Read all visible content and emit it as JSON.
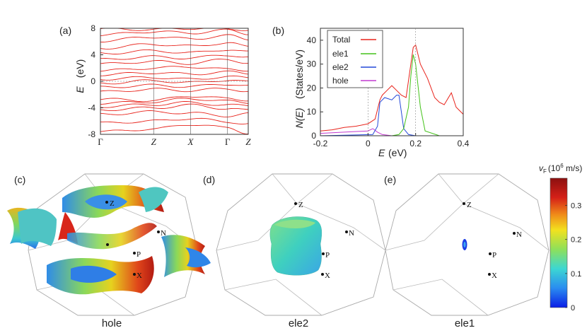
{
  "panel_labels": {
    "a": "(a)",
    "b": "(b)",
    "c": "(c)",
    "d": "(d)",
    "e": "(e)"
  },
  "chart_data": [
    {
      "type": "line",
      "id": "band-structure",
      "ylabel_symbol": "E",
      "ylabel_unit": "(eV)",
      "ylim": [
        -8,
        8
      ],
      "yticks": [
        "8",
        "4",
        "0",
        "-4",
        "-8"
      ],
      "ytick_values": [
        8,
        4,
        0,
        -4,
        -8
      ],
      "k_points": [
        "Γ",
        "Z",
        "X",
        "Γ",
        "Z"
      ],
      "k_positions": [
        0,
        0.36,
        0.61,
        0.86,
        1.0
      ],
      "color": "#e8231b",
      "bands": [
        [
          -7.6,
          -7.2,
          -6.5,
          -7.0,
          -7.8
        ],
        [
          -6.3,
          -6.0,
          -5.6,
          -6.1,
          -6.4
        ],
        [
          -5.0,
          -4.6,
          -4.8,
          -5.2,
          -4.9
        ],
        [
          -4.3,
          -4.0,
          -3.6,
          -4.1,
          -4.4
        ],
        [
          -3.8,
          -3.5,
          -3.2,
          -3.6,
          -3.7
        ],
        [
          -3.3,
          -3.1,
          -2.6,
          -3.0,
          -3.2
        ],
        [
          -2.7,
          -2.9,
          -2.2,
          -2.6,
          -2.8
        ],
        [
          -1.6,
          -1.2,
          -1.4,
          -1.1,
          -1.5
        ],
        [
          -0.9,
          -0.6,
          -0.8,
          -0.4,
          -0.7
        ],
        [
          -0.3,
          0.1,
          -0.2,
          0.2,
          -0.1
        ],
        [
          0.35,
          0.6,
          0.3,
          0.7,
          0.5
        ],
        [
          1.0,
          1.3,
          1.1,
          1.4,
          1.2
        ],
        [
          1.6,
          2.0,
          2.2,
          1.8,
          1.7
        ],
        [
          2.6,
          3.0,
          2.7,
          3.3,
          2.8
        ],
        [
          3.3,
          3.7,
          3.5,
          4.0,
          3.6
        ],
        [
          4.2,
          4.6,
          4.3,
          4.8,
          4.4
        ],
        [
          5.0,
          5.6,
          5.3,
          5.8,
          5.2
        ],
        [
          6.1,
          6.7,
          6.4,
          6.9,
          6.3
        ],
        [
          7.0,
          7.5,
          7.3,
          7.7,
          7.2
        ],
        [
          7.9,
          7.8,
          8.0,
          7.9,
          7.8
        ]
      ]
    },
    {
      "type": "line",
      "id": "density-of-states",
      "ylabel_symbol": "N(E)",
      "ylabel_unit": "(States/eV)",
      "xlabel_symbol": "E",
      "xlabel_unit": "(eV)",
      "xlim": [
        -0.2,
        0.4
      ],
      "ylim": [
        0,
        45
      ],
      "xticks": [
        "-0.2",
        "0",
        "0.2",
        "0.4"
      ],
      "xtick_values": [
        -0.2,
        0,
        0.2,
        0.4
      ],
      "yticks": [
        "0",
        "10",
        "20",
        "30",
        "40"
      ],
      "ytick_values": [
        0,
        10,
        20,
        30,
        40
      ],
      "legend": "top-left",
      "series": [
        {
          "name": "Total",
          "color": "#e8231b",
          "x": [
            -0.2,
            -0.15,
            -0.1,
            -0.05,
            0,
            0.03,
            0.05,
            0.06,
            0.08,
            0.1,
            0.12,
            0.14,
            0.16,
            0.18,
            0.19,
            0.2,
            0.22,
            0.25,
            0.28,
            0.3,
            0.32,
            0.35,
            0.37,
            0.4
          ],
          "y": [
            2,
            2.5,
            3.5,
            4,
            5,
            7,
            15,
            17,
            19,
            21,
            19,
            17,
            16,
            30,
            37,
            38,
            30,
            24,
            16,
            14,
            13,
            18,
            12,
            9
          ]
        },
        {
          "name": "ele1",
          "color": "#44c21a",
          "x": [
            -0.2,
            0.1,
            0.13,
            0.15,
            0.17,
            0.18,
            0.19,
            0.2,
            0.22,
            0.24,
            0.3,
            0.4
          ],
          "y": [
            0,
            0,
            0.5,
            3,
            12,
            25,
            34,
            30,
            12,
            2,
            0,
            0
          ]
        },
        {
          "name": "ele2",
          "color": "#2448d8",
          "x": [
            -0.2,
            0.02,
            0.04,
            0.05,
            0.07,
            0.1,
            0.12,
            0.13,
            0.14,
            0.15,
            0.17,
            0.2,
            0.4
          ],
          "y": [
            0,
            0.5,
            4,
            14,
            16,
            15,
            17,
            17,
            10,
            3,
            0.5,
            0,
            0
          ]
        },
        {
          "name": "hole",
          "color": "#c23ad0",
          "x": [
            -0.2,
            -0.1,
            0,
            0.02,
            0.04,
            0.06,
            0.1,
            0.4
          ],
          "y": [
            1,
            1.5,
            2,
            3,
            1.5,
            0.5,
            0,
            0
          ]
        }
      ]
    }
  ],
  "points": {
    "Z": "Z",
    "N": "N",
    "P": "P",
    "X": "X"
  },
  "surface_titles": {
    "hole": "hole",
    "ele2": "ele2",
    "ele1": "ele1"
  },
  "colorbar": {
    "symbol": "v",
    "subscript": "F",
    "unit_prefix": "(10",
    "exponent": "6",
    "unit_suffix": " m/s)",
    "ticks": [
      "0.3",
      "0.2",
      "0.1",
      "0"
    ],
    "tick_values": [
      0.3,
      0.2,
      0.1,
      0
    ],
    "range": [
      0,
      0.38
    ],
    "stops": [
      "#0a1ee6",
      "#2a8cf0",
      "#3cd7d2",
      "#8ee05a",
      "#f2e11e",
      "#f08a19",
      "#d52018",
      "#8c1010"
    ]
  }
}
